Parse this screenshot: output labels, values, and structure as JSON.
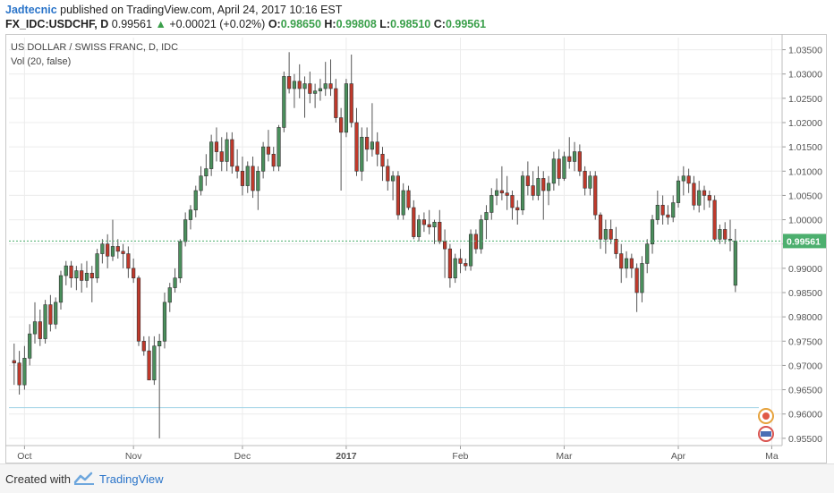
{
  "header": {
    "author": "Jadtecnic",
    "published": "published on TradingView.com, April 24, 2017 10:16 EST",
    "symbol": "FX_IDC:USDCHF, D",
    "last": "0.99561",
    "change": "+0.00021 (+0.02%)",
    "o_label": "O:",
    "o_value": "0.98650",
    "h_label": "H:",
    "h_value": "0.99808",
    "l_label": "L:",
    "l_value": "0.98510",
    "c_label": "C:",
    "c_value": "0.99561"
  },
  "footer": {
    "created_with": "Created with",
    "brand": "TradingView"
  },
  "colors": {
    "up": "#4a8f5c",
    "down": "#c0392b",
    "last_price": "#4caf6e",
    "author": "#2a74c9"
  },
  "chart_data": {
    "type": "candlestick",
    "title": "US DOLLAR / SWISS FRANC, D, IDC",
    "subtitle": "Vol (20, false)",
    "ylim": [
      0.9535,
      1.0375
    ],
    "yticks": [
      1.035,
      1.03,
      1.025,
      1.02,
      1.015,
      1.01,
      1.005,
      1.0,
      0.995,
      0.99,
      0.985,
      0.98,
      0.975,
      0.97,
      0.965,
      0.96,
      0.955
    ],
    "ytick_labels": [
      "1.03500",
      "1.03000",
      "1.02500",
      "1.02000",
      "1.01500",
      "1.01000",
      "1.00500",
      "1.00000",
      "0.99500",
      "0.99000",
      "0.98500",
      "0.98000",
      "0.97500",
      "0.97000",
      "0.96500",
      "0.96000",
      "0.95500"
    ],
    "xlabels": [
      {
        "label": "Oct",
        "i": 2
      },
      {
        "label": "Nov",
        "i": 23
      },
      {
        "label": "Dec",
        "i": 44
      },
      {
        "label": "2017",
        "i": 64
      },
      {
        "label": "Feb",
        "i": 86
      },
      {
        "label": "Mar",
        "i": 106
      },
      {
        "label": "Apr",
        "i": 128
      },
      {
        "label": "Ma",
        "i": 146
      }
    ],
    "x_range": [
      -1,
      148
    ],
    "last_price": 0.99561,
    "last_price_label": "0.99561",
    "horizontal_line": 0.9613,
    "candles": [
      {
        "o": 0.971,
        "h": 0.9745,
        "l": 0.966,
        "c": 0.9705
      },
      {
        "o": 0.9705,
        "h": 0.973,
        "l": 0.964,
        "c": 0.966
      },
      {
        "o": 0.966,
        "h": 0.974,
        "l": 0.965,
        "c": 0.9715
      },
      {
        "o": 0.9715,
        "h": 0.9785,
        "l": 0.97,
        "c": 0.9765
      },
      {
        "o": 0.9765,
        "h": 0.983,
        "l": 0.9745,
        "c": 0.979
      },
      {
        "o": 0.979,
        "h": 0.9815,
        "l": 0.974,
        "c": 0.9755
      },
      {
        "o": 0.9755,
        "h": 0.9835,
        "l": 0.9745,
        "c": 0.9825
      },
      {
        "o": 0.9825,
        "h": 0.9845,
        "l": 0.977,
        "c": 0.9785
      },
      {
        "o": 0.9785,
        "h": 0.984,
        "l": 0.9775,
        "c": 0.983
      },
      {
        "o": 0.983,
        "h": 0.9895,
        "l": 0.9815,
        "c": 0.9885
      },
      {
        "o": 0.9885,
        "h": 0.9915,
        "l": 0.9865,
        "c": 0.9905
      },
      {
        "o": 0.9905,
        "h": 0.9915,
        "l": 0.986,
        "c": 0.988
      },
      {
        "o": 0.988,
        "h": 0.9905,
        "l": 0.9855,
        "c": 0.9895
      },
      {
        "o": 0.9895,
        "h": 0.991,
        "l": 0.985,
        "c": 0.9875
      },
      {
        "o": 0.9875,
        "h": 0.9915,
        "l": 0.986,
        "c": 0.989
      },
      {
        "o": 0.989,
        "h": 0.9905,
        "l": 0.983,
        "c": 0.988
      },
      {
        "o": 0.988,
        "h": 0.994,
        "l": 0.987,
        "c": 0.993
      },
      {
        "o": 0.993,
        "h": 0.996,
        "l": 0.991,
        "c": 0.995
      },
      {
        "o": 0.995,
        "h": 0.997,
        "l": 0.99,
        "c": 0.9925
      },
      {
        "o": 0.9925,
        "h": 1.0,
        "l": 0.9915,
        "c": 0.9945
      },
      {
        "o": 0.9945,
        "h": 0.996,
        "l": 0.992,
        "c": 0.9935
      },
      {
        "o": 0.9935,
        "h": 0.995,
        "l": 0.99,
        "c": 0.993
      },
      {
        "o": 0.993,
        "h": 0.9945,
        "l": 0.988,
        "c": 0.99
      },
      {
        "o": 0.99,
        "h": 0.992,
        "l": 0.987,
        "c": 0.988
      },
      {
        "o": 0.988,
        "h": 0.9885,
        "l": 0.974,
        "c": 0.975
      },
      {
        "o": 0.975,
        "h": 0.976,
        "l": 0.972,
        "c": 0.973
      },
      {
        "o": 0.973,
        "h": 0.976,
        "l": 0.967,
        "c": 0.967
      },
      {
        "o": 0.967,
        "h": 0.976,
        "l": 0.966,
        "c": 0.974
      },
      {
        "o": 0.974,
        "h": 0.9765,
        "l": 0.955,
        "c": 0.975
      },
      {
        "o": 0.975,
        "h": 0.985,
        "l": 0.9735,
        "c": 0.983
      },
      {
        "o": 0.983,
        "h": 0.987,
        "l": 0.981,
        "c": 0.986
      },
      {
        "o": 0.986,
        "h": 0.99,
        "l": 0.985,
        "c": 0.988
      },
      {
        "o": 0.988,
        "h": 0.996,
        "l": 0.987,
        "c": 0.9955
      },
      {
        "o": 0.9955,
        "h": 1.0015,
        "l": 0.9945,
        "c": 1.0
      },
      {
        "o": 1.0,
        "h": 1.003,
        "l": 0.998,
        "c": 1.002
      },
      {
        "o": 1.002,
        "h": 1.007,
        "l": 1.0005,
        "c": 1.006
      },
      {
        "o": 1.006,
        "h": 1.011,
        "l": 1.005,
        "c": 1.009
      },
      {
        "o": 1.009,
        "h": 1.0135,
        "l": 1.007,
        "c": 1.0105
      },
      {
        "o": 1.0105,
        "h": 1.0175,
        "l": 1.009,
        "c": 1.016
      },
      {
        "o": 1.016,
        "h": 1.019,
        "l": 1.012,
        "c": 1.014
      },
      {
        "o": 1.014,
        "h": 1.017,
        "l": 1.01,
        "c": 1.012
      },
      {
        "o": 1.012,
        "h": 1.018,
        "l": 1.01,
        "c": 1.0165
      },
      {
        "o": 1.0165,
        "h": 1.018,
        "l": 1.0095,
        "c": 1.011
      },
      {
        "o": 1.011,
        "h": 1.0145,
        "l": 1.0085,
        "c": 1.01
      },
      {
        "o": 1.01,
        "h": 1.013,
        "l": 1.005,
        "c": 1.007
      },
      {
        "o": 1.007,
        "h": 1.012,
        "l": 1.0055,
        "c": 1.011
      },
      {
        "o": 1.011,
        "h": 1.013,
        "l": 1.0045,
        "c": 1.006
      },
      {
        "o": 1.006,
        "h": 1.011,
        "l": 1.002,
        "c": 1.01
      },
      {
        "o": 1.01,
        "h": 1.016,
        "l": 1.0085,
        "c": 1.015
      },
      {
        "o": 1.015,
        "h": 1.0185,
        "l": 1.012,
        "c": 1.0135
      },
      {
        "o": 1.0135,
        "h": 1.015,
        "l": 1.01,
        "c": 1.011
      },
      {
        "o": 1.011,
        "h": 1.0195,
        "l": 1.01,
        "c": 1.019
      },
      {
        "o": 1.019,
        "h": 1.0305,
        "l": 1.018,
        "c": 1.0295
      },
      {
        "o": 1.0295,
        "h": 1.0345,
        "l": 1.026,
        "c": 1.027
      },
      {
        "o": 1.027,
        "h": 1.03,
        "l": 1.023,
        "c": 1.0285
      },
      {
        "o": 1.0285,
        "h": 1.032,
        "l": 1.025,
        "c": 1.027
      },
      {
        "o": 1.027,
        "h": 1.0295,
        "l": 1.021,
        "c": 1.028
      },
      {
        "o": 1.028,
        "h": 1.0305,
        "l": 1.024,
        "c": 1.026
      },
      {
        "o": 1.026,
        "h": 1.028,
        "l": 1.023,
        "c": 1.0265
      },
      {
        "o": 1.0265,
        "h": 1.029,
        "l": 1.0245,
        "c": 1.027
      },
      {
        "o": 1.027,
        "h": 1.0325,
        "l": 1.0255,
        "c": 1.028
      },
      {
        "o": 1.028,
        "h": 1.033,
        "l": 1.0255,
        "c": 1.027
      },
      {
        "o": 1.027,
        "h": 1.029,
        "l": 1.02,
        "c": 1.021
      },
      {
        "o": 1.021,
        "h": 1.023,
        "l": 1.006,
        "c": 1.018
      },
      {
        "o": 1.018,
        "h": 1.029,
        "l": 1.017,
        "c": 1.028
      },
      {
        "o": 1.028,
        "h": 1.034,
        "l": 1.019,
        "c": 1.02
      },
      {
        "o": 1.02,
        "h": 1.023,
        "l": 1.009,
        "c": 1.01
      },
      {
        "o": 1.01,
        "h": 1.019,
        "l": 1.008,
        "c": 1.017
      },
      {
        "o": 1.017,
        "h": 1.019,
        "l": 1.012,
        "c": 1.0145
      },
      {
        "o": 1.0145,
        "h": 1.024,
        "l": 1.013,
        "c": 1.016
      },
      {
        "o": 1.016,
        "h": 1.018,
        "l": 1.011,
        "c": 1.0135
      },
      {
        "o": 1.0135,
        "h": 1.015,
        "l": 1.008,
        "c": 1.011
      },
      {
        "o": 1.011,
        "h": 1.0125,
        "l": 1.006,
        "c": 1.008
      },
      {
        "o": 1.008,
        "h": 1.01,
        "l": 1.004,
        "c": 1.009
      },
      {
        "o": 1.009,
        "h": 1.01,
        "l": 1.0,
        "c": 1.001
      },
      {
        "o": 1.001,
        "h": 1.0075,
        "l": 1.0,
        "c": 1.006
      },
      {
        "o": 1.006,
        "h": 1.007,
        "l": 1.002,
        "c": 1.0025
      },
      {
        "o": 1.0025,
        "h": 1.004,
        "l": 0.996,
        "c": 0.9965
      },
      {
        "o": 0.9965,
        "h": 1.001,
        "l": 0.9955,
        "c": 1.0
      },
      {
        "o": 1.0,
        "h": 1.0015,
        "l": 0.9975,
        "c": 0.999
      },
      {
        "o": 0.999,
        "h": 1.002,
        "l": 0.997,
        "c": 0.9985
      },
      {
        "o": 0.9985,
        "h": 1.0,
        "l": 0.995,
        "c": 0.9995
      },
      {
        "o": 0.9995,
        "h": 1.002,
        "l": 0.995,
        "c": 0.9955
      },
      {
        "o": 0.9955,
        "h": 0.998,
        "l": 0.988,
        "c": 0.994
      },
      {
        "o": 0.994,
        "h": 0.995,
        "l": 0.986,
        "c": 0.988
      },
      {
        "o": 0.988,
        "h": 0.993,
        "l": 0.987,
        "c": 0.992
      },
      {
        "o": 0.992,
        "h": 0.994,
        "l": 0.989,
        "c": 0.991
      },
      {
        "o": 0.991,
        "h": 0.992,
        "l": 0.9895,
        "c": 0.9905
      },
      {
        "o": 0.9905,
        "h": 0.998,
        "l": 0.9895,
        "c": 0.997
      },
      {
        "o": 0.997,
        "h": 0.998,
        "l": 0.993,
        "c": 0.994
      },
      {
        "o": 0.994,
        "h": 1.001,
        "l": 0.993,
        "c": 1.0
      },
      {
        "o": 1.0,
        "h": 1.003,
        "l": 0.996,
        "c": 1.0015
      },
      {
        "o": 1.0015,
        "h": 1.0065,
        "l": 1.0,
        "c": 1.005
      },
      {
        "o": 1.005,
        "h": 1.0085,
        "l": 1.003,
        "c": 1.006
      },
      {
        "o": 1.006,
        "h": 1.011,
        "l": 1.004,
        "c": 1.0055
      },
      {
        "o": 1.0055,
        "h": 1.009,
        "l": 1.002,
        "c": 1.005
      },
      {
        "o": 1.005,
        "h": 1.006,
        "l": 1.0,
        "c": 1.0025
      },
      {
        "o": 1.0025,
        "h": 1.004,
        "l": 0.999,
        "c": 1.002
      },
      {
        "o": 1.002,
        "h": 1.01,
        "l": 1.001,
        "c": 1.009
      },
      {
        "o": 1.009,
        "h": 1.012,
        "l": 1.005,
        "c": 1.007
      },
      {
        "o": 1.007,
        "h": 1.01,
        "l": 1.004,
        "c": 1.005
      },
      {
        "o": 1.005,
        "h": 1.011,
        "l": 1.004,
        "c": 1.0085
      },
      {
        "o": 1.0085,
        "h": 1.01,
        "l": 1.0,
        "c": 1.006
      },
      {
        "o": 1.006,
        "h": 1.009,
        "l": 1.003,
        "c": 1.0075
      },
      {
        "o": 1.0075,
        "h": 1.014,
        "l": 1.006,
        "c": 1.0125
      },
      {
        "o": 1.0125,
        "h": 1.0145,
        "l": 1.007,
        "c": 1.0085
      },
      {
        "o": 1.0085,
        "h": 1.014,
        "l": 1.008,
        "c": 1.013
      },
      {
        "o": 1.013,
        "h": 1.017,
        "l": 1.0105,
        "c": 1.012
      },
      {
        "o": 1.012,
        "h": 1.016,
        "l": 1.01,
        "c": 1.014
      },
      {
        "o": 1.014,
        "h": 1.0155,
        "l": 1.009,
        "c": 1.01
      },
      {
        "o": 1.01,
        "h": 1.011,
        "l": 1.005,
        "c": 1.0065
      },
      {
        "o": 1.0065,
        "h": 1.01,
        "l": 1.005,
        "c": 1.009
      },
      {
        "o": 1.009,
        "h": 1.01,
        "l": 1.0,
        "c": 1.001
      },
      {
        "o": 1.001,
        "h": 1.0015,
        "l": 0.994,
        "c": 0.996
      },
      {
        "o": 0.996,
        "h": 1.0,
        "l": 0.993,
        "c": 0.998
      },
      {
        "o": 0.998,
        "h": 1.0,
        "l": 0.995,
        "c": 0.996
      },
      {
        "o": 0.996,
        "h": 0.9985,
        "l": 0.992,
        "c": 0.993
      },
      {
        "o": 0.993,
        "h": 0.995,
        "l": 0.987,
        "c": 0.99
      },
      {
        "o": 0.99,
        "h": 0.9935,
        "l": 0.988,
        "c": 0.992
      },
      {
        "o": 0.992,
        "h": 0.993,
        "l": 0.988,
        "c": 0.99
      },
      {
        "o": 0.99,
        "h": 0.991,
        "l": 0.981,
        "c": 0.985
      },
      {
        "o": 0.985,
        "h": 0.9925,
        "l": 0.983,
        "c": 0.991
      },
      {
        "o": 0.991,
        "h": 0.996,
        "l": 0.989,
        "c": 0.995
      },
      {
        "o": 0.995,
        "h": 1.001,
        "l": 0.993,
        "c": 1.0
      },
      {
        "o": 1.0,
        "h": 1.006,
        "l": 0.999,
        "c": 1.003
      },
      {
        "o": 1.003,
        "h": 1.005,
        "l": 0.999,
        "c": 1.001
      },
      {
        "o": 1.001,
        "h": 1.003,
        "l": 0.999,
        "c": 1.0005
      },
      {
        "o": 1.0005,
        "h": 1.005,
        "l": 0.9995,
        "c": 1.0035
      },
      {
        "o": 1.0035,
        "h": 1.009,
        "l": 1.0025,
        "c": 1.008
      },
      {
        "o": 1.008,
        "h": 1.011,
        "l": 1.005,
        "c": 1.009
      },
      {
        "o": 1.009,
        "h": 1.0105,
        "l": 1.0055,
        "c": 1.0075
      },
      {
        "o": 1.0075,
        "h": 1.009,
        "l": 1.002,
        "c": 1.003
      },
      {
        "o": 1.003,
        "h": 1.008,
        "l": 1.0015,
        "c": 1.006
      },
      {
        "o": 1.006,
        "h": 1.007,
        "l": 1.002,
        "c": 1.005
      },
      {
        "o": 1.005,
        "h": 1.006,
        "l": 1.0025,
        "c": 1.004
      },
      {
        "o": 1.004,
        "h": 1.005,
        "l": 0.9955,
        "c": 0.996
      },
      {
        "o": 0.996,
        "h": 0.999,
        "l": 0.995,
        "c": 0.998
      },
      {
        "o": 0.998,
        "h": 0.9995,
        "l": 0.995,
        "c": 0.996
      },
      {
        "o": 0.996,
        "h": 1.0,
        "l": 0.9935,
        "c": 0.996
      },
      {
        "o": 0.9865,
        "h": 0.9981,
        "l": 0.9851,
        "c": 0.9956
      }
    ]
  }
}
